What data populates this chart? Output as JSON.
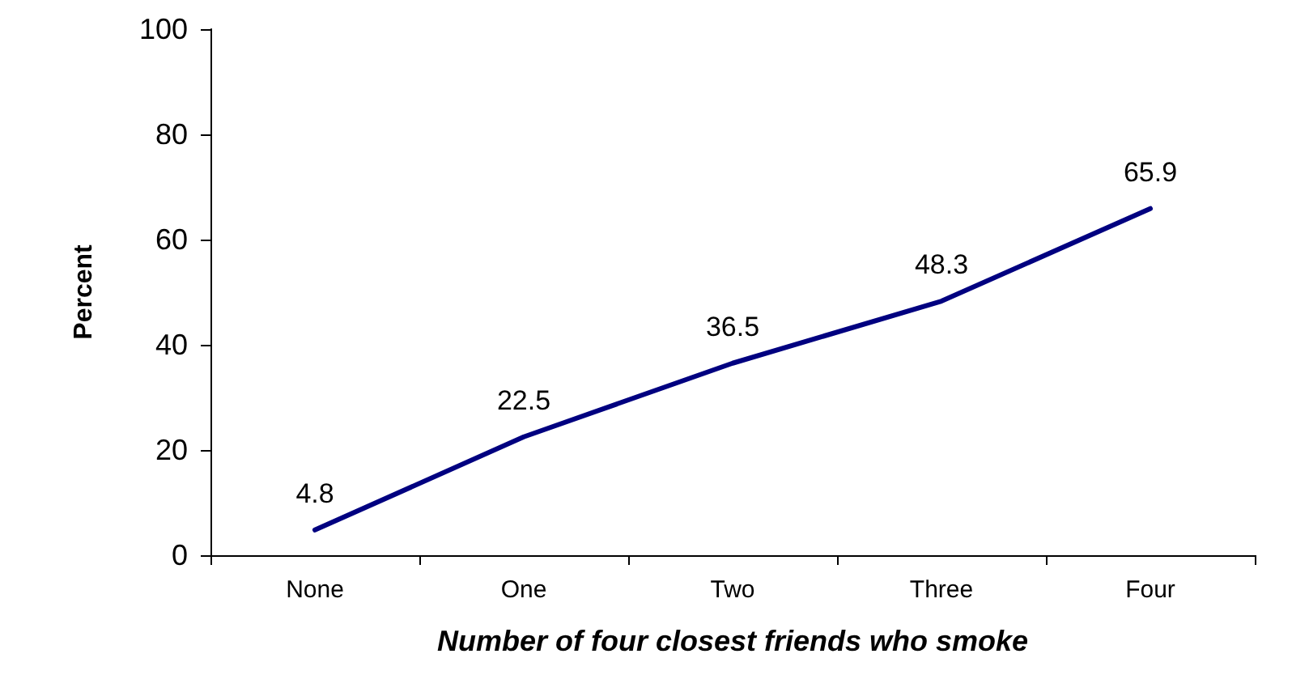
{
  "chart_data": {
    "type": "line",
    "xlabel": "Number of four closest friends who smoke",
    "ylabel": "Percent",
    "categories": [
      "None",
      "One",
      "Two",
      "Three",
      "Four"
    ],
    "series": [
      {
        "color": "#000080",
        "values": [
          4.8,
          22.5,
          36.5,
          48.3,
          65.9
        ]
      }
    ],
    "ylim": [
      0,
      100
    ],
    "yticks": [
      0,
      20,
      40,
      60,
      80,
      100
    ],
    "grid": false,
    "marker": "none",
    "line_style": "solid",
    "data_labels": true
  }
}
